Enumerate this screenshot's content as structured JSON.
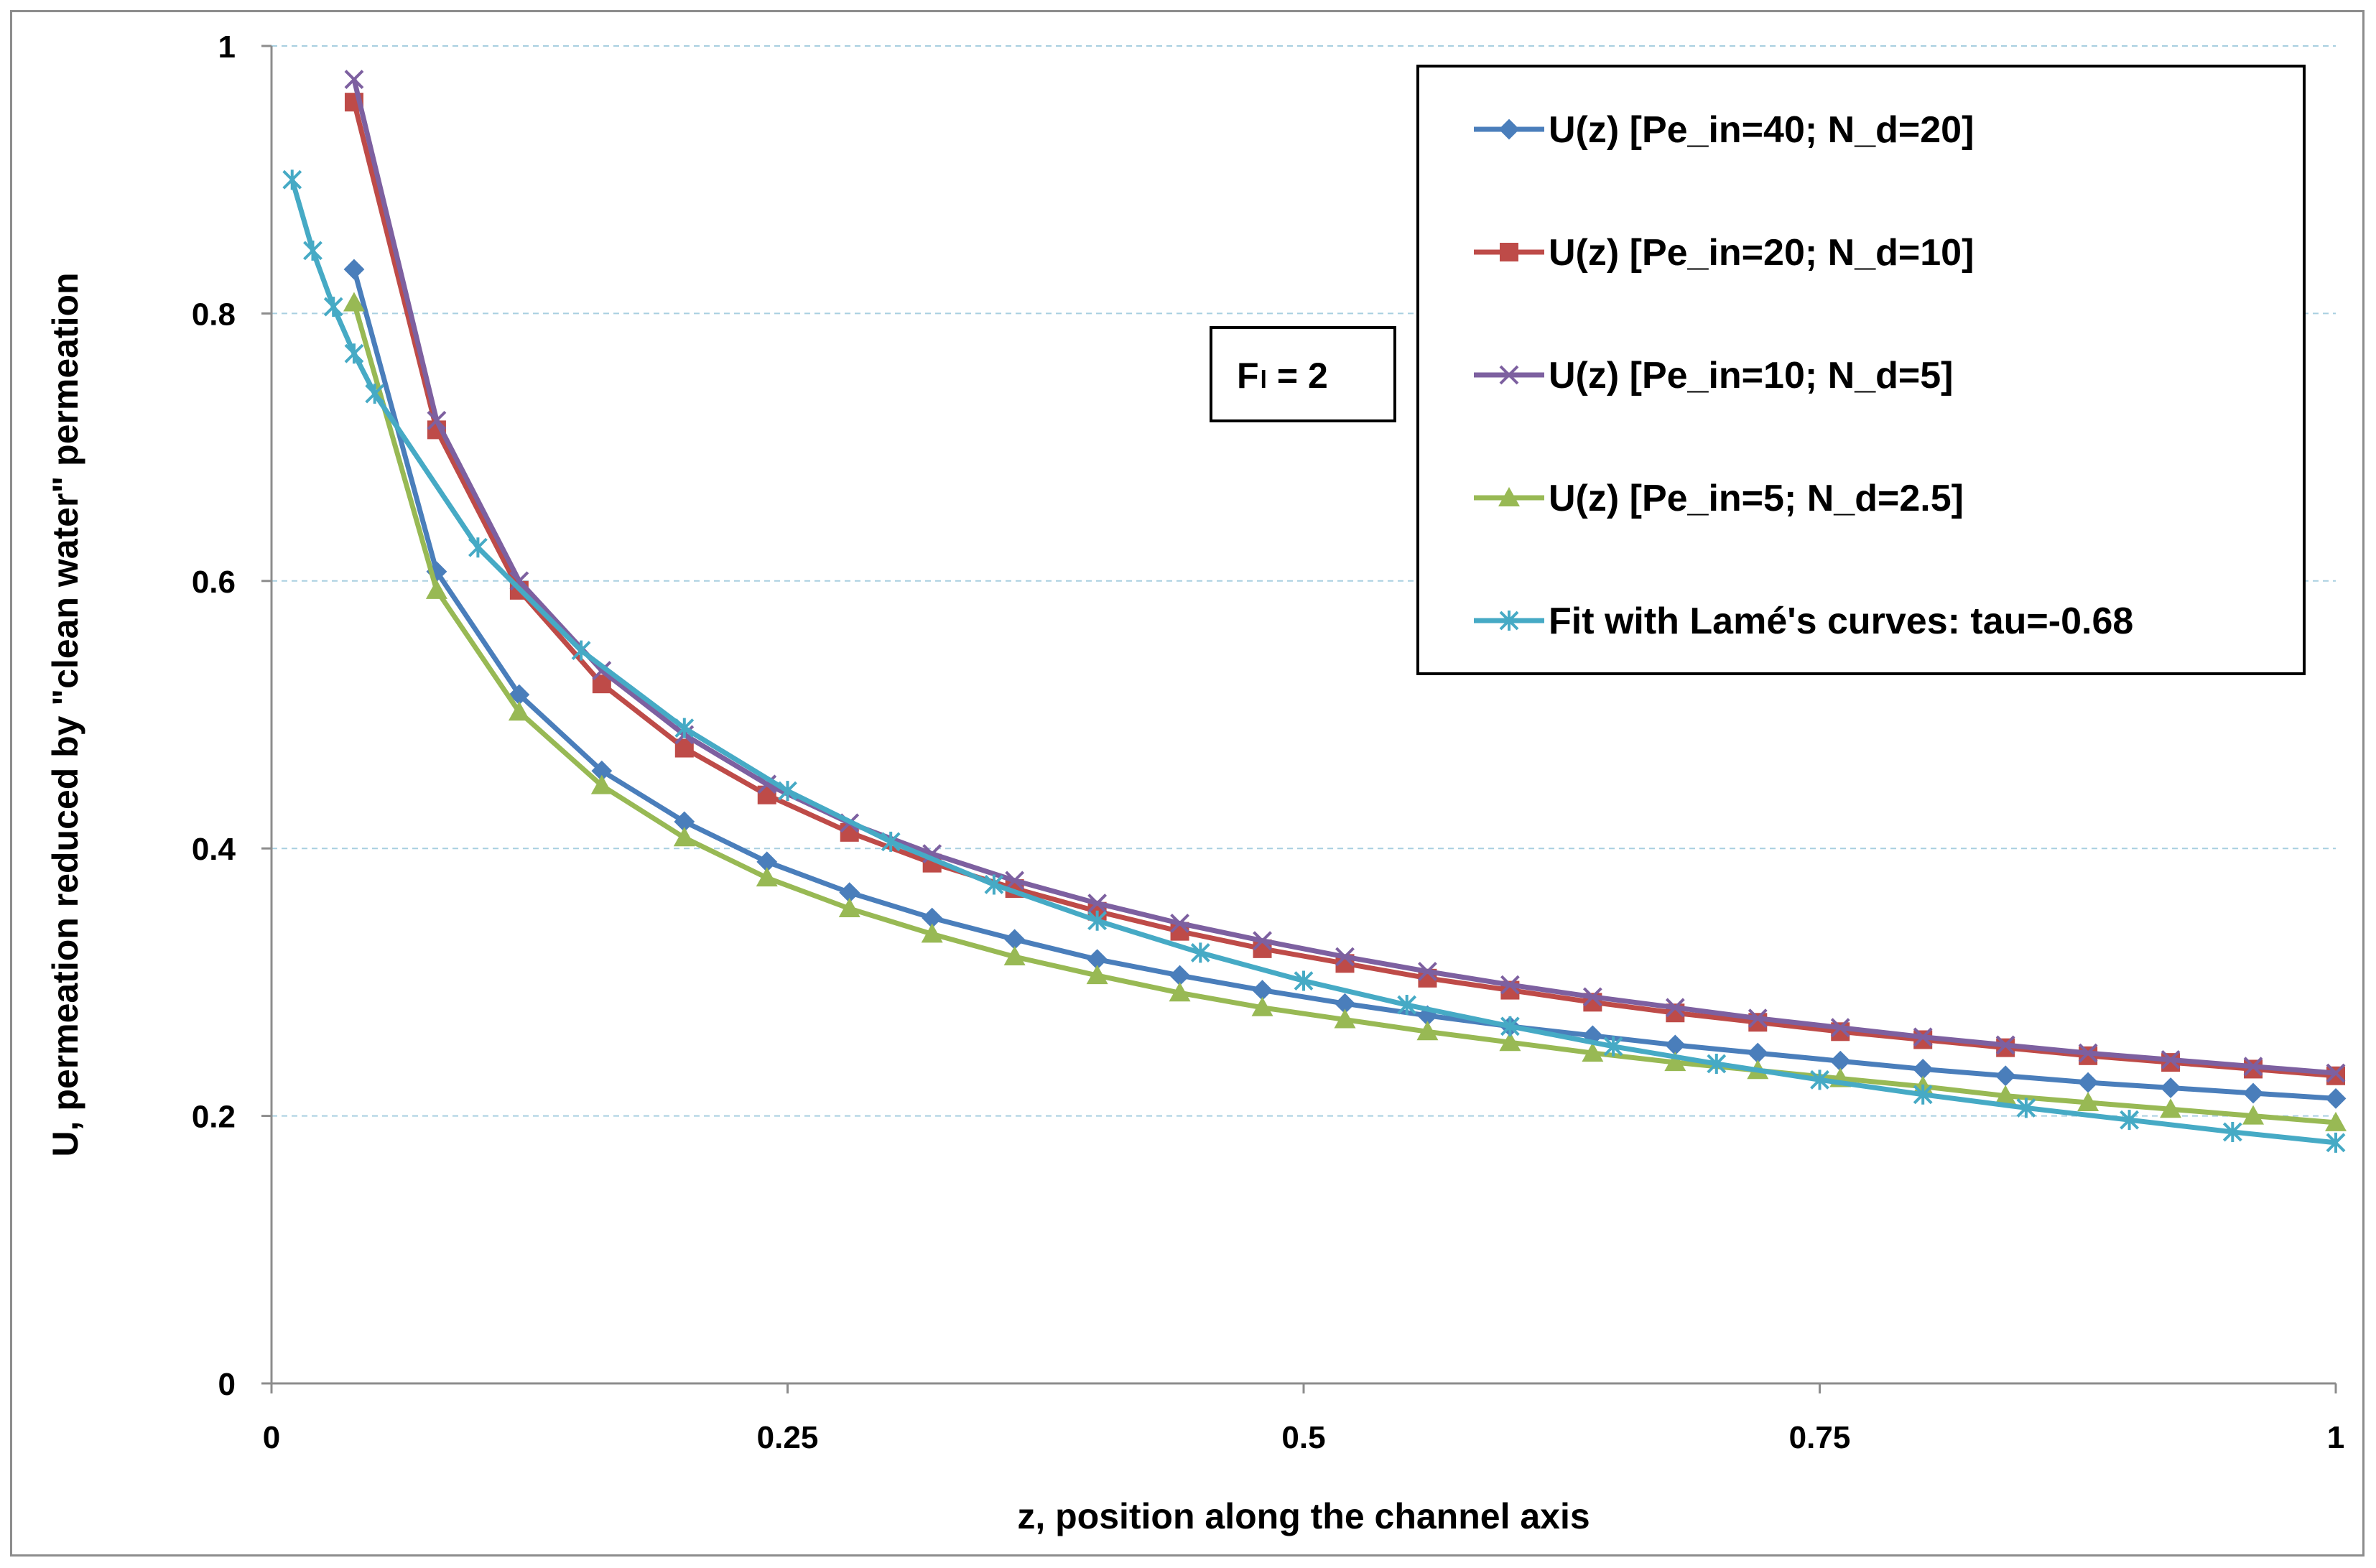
{
  "chart_data": {
    "type": "line",
    "xlabel": "z, position along the channel axis",
    "ylabel": "U, permeation reduced by \"clean water\" permeation",
    "xlim": [
      0,
      1
    ],
    "ylim": [
      0,
      1
    ],
    "x_ticks": [
      0,
      0.25,
      0.5,
      0.75,
      1
    ],
    "x_tick_labels": [
      "0",
      "0.25",
      "0.5",
      "0.75",
      "1"
    ],
    "y_ticks": [
      0,
      0.2,
      0.4,
      0.6,
      0.8,
      1
    ],
    "y_tick_labels": [
      "0",
      "0.2",
      "0.4",
      "0.6",
      "0.8",
      "1"
    ],
    "grid": "horizontal dashed",
    "legend_position": "top-right",
    "annotation": {
      "main": "F",
      "sub": "l",
      "rest": " = 2"
    },
    "series": [
      {
        "name": "U(z)  [Pe_in=40; N_d=20]",
        "color": "#4a7ebb",
        "marker": "diamond",
        "x": [
          0.04,
          0.08,
          0.12,
          0.16,
          0.2,
          0.24,
          0.28,
          0.32,
          0.36,
          0.4,
          0.44,
          0.48,
          0.52,
          0.56,
          0.6,
          0.64,
          0.68,
          0.72,
          0.76,
          0.8,
          0.84,
          0.88,
          0.92,
          0.96,
          1.0
        ],
        "y": [
          0.833,
          0.607,
          0.515,
          0.458,
          0.42,
          0.39,
          0.367,
          0.348,
          0.332,
          0.317,
          0.305,
          0.294,
          0.284,
          0.275,
          0.267,
          0.26,
          0.253,
          0.247,
          0.241,
          0.235,
          0.23,
          0.225,
          0.221,
          0.217,
          0.213
        ]
      },
      {
        "name": "U(z)  [Pe_in=20; N_d=10]",
        "color": "#be4b48",
        "marker": "square",
        "x": [
          0.04,
          0.08,
          0.12,
          0.16,
          0.2,
          0.24,
          0.28,
          0.32,
          0.36,
          0.4,
          0.44,
          0.48,
          0.52,
          0.56,
          0.6,
          0.64,
          0.68,
          0.72,
          0.76,
          0.8,
          0.84,
          0.88,
          0.92,
          0.96,
          1.0
        ],
        "y": [
          0.958,
          0.713,
          0.593,
          0.523,
          0.475,
          0.44,
          0.412,
          0.389,
          0.37,
          0.353,
          0.338,
          0.325,
          0.314,
          0.303,
          0.294,
          0.285,
          0.277,
          0.27,
          0.263,
          0.257,
          0.251,
          0.245,
          0.24,
          0.235,
          0.23
        ]
      },
      {
        "name": "U(z)  [Pe_in=10; N_d=5]",
        "color": "#7d60a0",
        "marker": "x",
        "x": [
          0.04,
          0.08,
          0.12,
          0.16,
          0.2,
          0.24,
          0.28,
          0.32,
          0.36,
          0.4,
          0.44,
          0.48,
          0.52,
          0.56,
          0.6,
          0.64,
          0.68,
          0.72,
          0.76,
          0.8,
          0.84,
          0.88,
          0.92,
          0.96,
          1.0
        ],
        "y": [
          0.975,
          0.72,
          0.6,
          0.533,
          0.485,
          0.448,
          0.419,
          0.396,
          0.376,
          0.359,
          0.344,
          0.331,
          0.319,
          0.308,
          0.298,
          0.289,
          0.281,
          0.273,
          0.266,
          0.259,
          0.253,
          0.247,
          0.242,
          0.237,
          0.232
        ]
      },
      {
        "name": "U(z)  [Pe_in=5; N_d=2.5]",
        "color": "#98b954",
        "marker": "triangle",
        "x": [
          0.04,
          0.08,
          0.12,
          0.16,
          0.2,
          0.24,
          0.28,
          0.32,
          0.36,
          0.4,
          0.44,
          0.48,
          0.52,
          0.56,
          0.6,
          0.64,
          0.68,
          0.72,
          0.76,
          0.8,
          0.84,
          0.88,
          0.92,
          0.96,
          1.0
        ],
        "y": [
          0.808,
          0.593,
          0.502,
          0.447,
          0.408,
          0.378,
          0.355,
          0.336,
          0.319,
          0.305,
          0.292,
          0.281,
          0.272,
          0.263,
          0.255,
          0.247,
          0.24,
          0.234,
          0.228,
          0.222,
          0.215,
          0.21,
          0.205,
          0.2,
          0.195
        ]
      },
      {
        "name": "Fit with Lamé's curves: tau=-0.68",
        "color": "#46aac5",
        "marker": "asterisk",
        "x": [
          0.01,
          0.02,
          0.03,
          0.04,
          0.05,
          0.1,
          0.15,
          0.2,
          0.25,
          0.3,
          0.35,
          0.4,
          0.45,
          0.5,
          0.55,
          0.6,
          0.65,
          0.7,
          0.75,
          0.8,
          0.85,
          0.9,
          0.95,
          1.0
        ],
        "y": [
          0.9,
          0.847,
          0.805,
          0.77,
          0.74,
          0.625,
          0.548,
          0.49,
          0.443,
          0.405,
          0.373,
          0.346,
          0.322,
          0.301,
          0.283,
          0.267,
          0.252,
          0.239,
          0.227,
          0.216,
          0.206,
          0.197,
          0.188,
          0.18
        ]
      }
    ]
  }
}
